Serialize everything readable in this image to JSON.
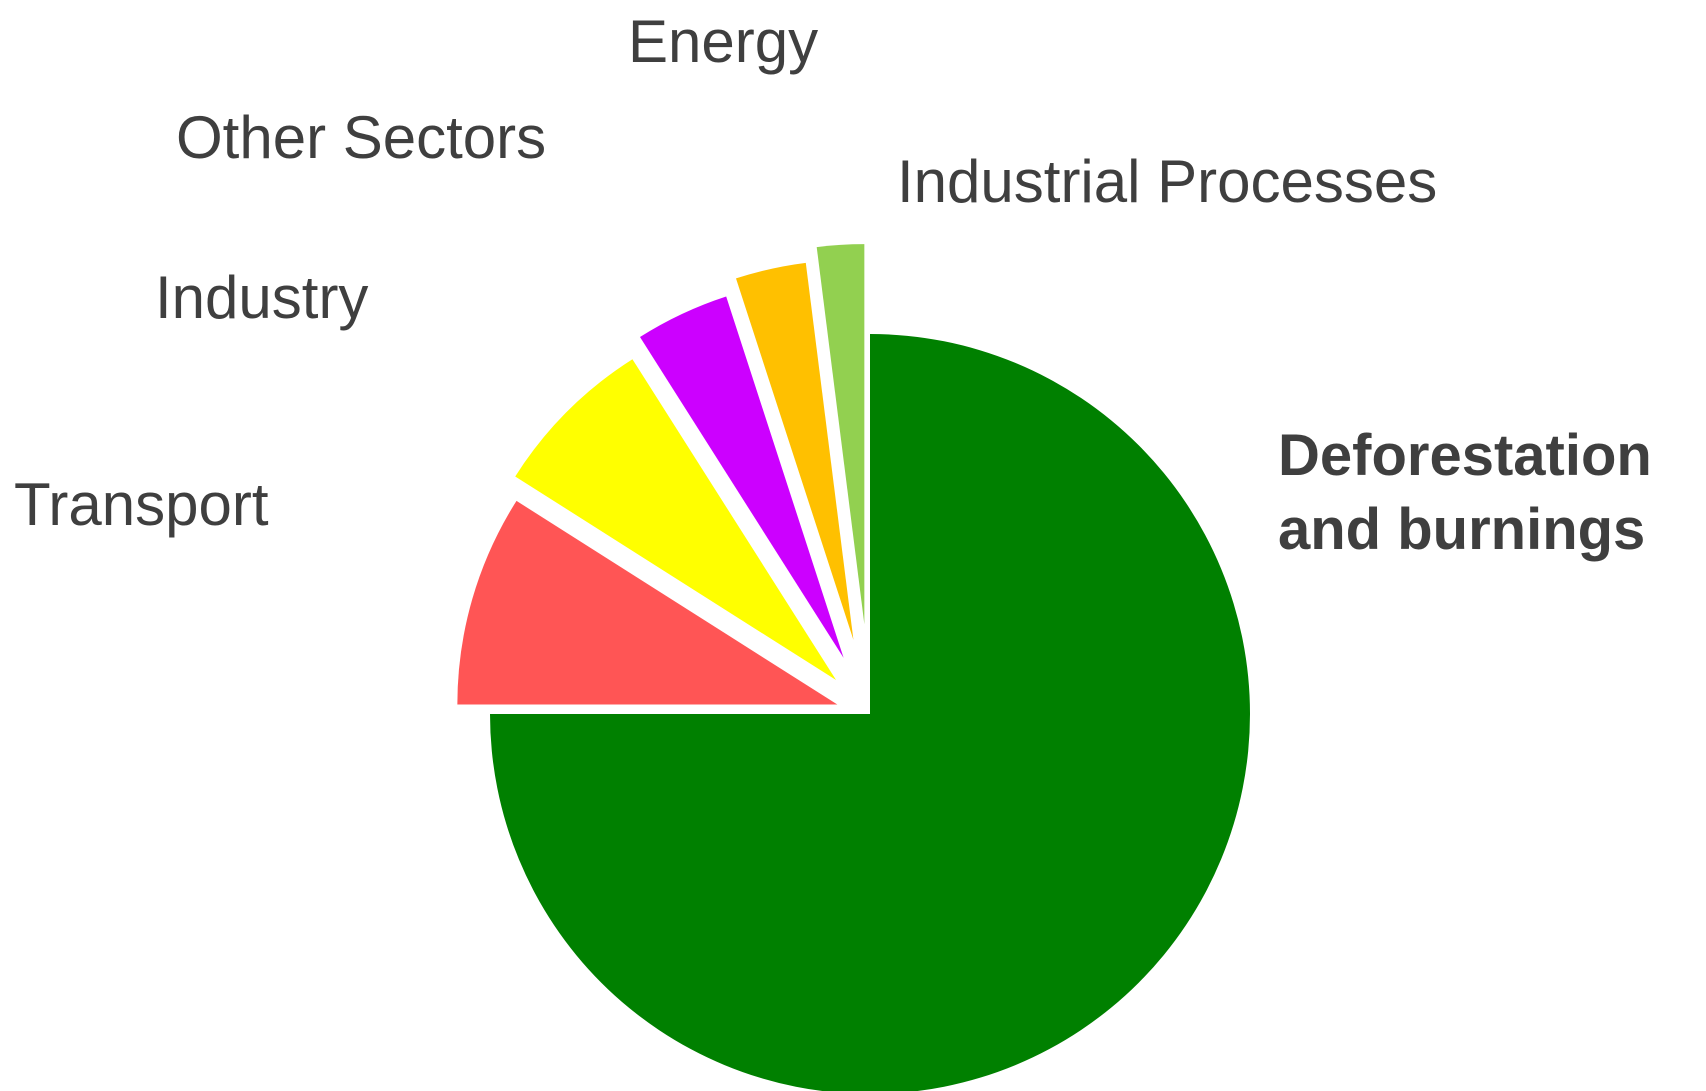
{
  "chart_data": {
    "type": "pie",
    "title": "",
    "slices": [
      {
        "label": "Deforestation and burnings",
        "value": 75.0,
        "color": "#008000",
        "bold": true
      },
      {
        "label": "Transport",
        "value": 9.0,
        "color": "#ff5555",
        "bold": false
      },
      {
        "label": "Industry",
        "value": 7.0,
        "color": "#ffff00",
        "bold": false
      },
      {
        "label": "Other Sectors",
        "value": 4.0,
        "color": "#cc00ff",
        "bold": false
      },
      {
        "label": "Energy",
        "value": 3.0,
        "color": "#ffc000",
        "bold": false
      },
      {
        "label": "Industrial Processes",
        "value": 2.0,
        "color": "#92d050",
        "bold": false
      }
    ],
    "legend": "none"
  }
}
